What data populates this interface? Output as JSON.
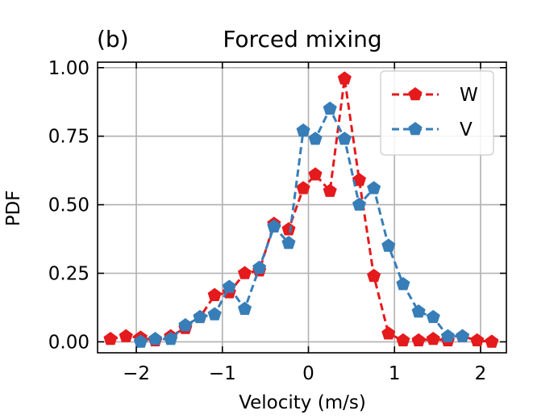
{
  "chart_data": {
    "type": "line",
    "panel_label": "(b)",
    "title": "Forced mixing",
    "xlabel": "Velocity (m/s)",
    "ylabel": "PDF",
    "xlim": [
      -2.45,
      2.3
    ],
    "ylim": [
      -0.04,
      1.02
    ],
    "xticks": [
      -2,
      -1,
      0,
      1,
      2
    ],
    "xtick_labels": [
      "−2",
      "−1",
      "0",
      "1",
      "2"
    ],
    "yticks": [
      0.0,
      0.25,
      0.5,
      0.75,
      1.0
    ],
    "ytick_labels": [
      "0.00",
      "0.25",
      "0.50",
      "0.75",
      "1.00"
    ],
    "grid": true,
    "legend_position": "top-right",
    "series": [
      {
        "name": "W",
        "color": "#e41a1c",
        "marker": "pentagon",
        "linestyle": "dashed",
        "x": [
          -2.3,
          -2.12,
          -1.95,
          -1.78,
          -1.6,
          -1.43,
          -1.26,
          -1.09,
          -0.92,
          -0.74,
          -0.57,
          -0.4,
          -0.23,
          -0.06,
          0.08,
          0.25,
          0.42,
          0.59,
          0.76,
          0.93,
          1.1,
          1.28,
          1.45,
          1.62,
          1.79,
          1.96,
          2.13
        ],
        "y": [
          0.01,
          0.02,
          0.015,
          0.005,
          0.02,
          0.05,
          0.09,
          0.17,
          0.18,
          0.25,
          0.26,
          0.43,
          0.41,
          0.56,
          0.61,
          0.55,
          0.96,
          0.59,
          0.24,
          0.03,
          0.005,
          0.005,
          0.01,
          0.005,
          0.02,
          0.005,
          0.0
        ]
      },
      {
        "name": "V",
        "color": "#377eb8",
        "marker": "pentagon",
        "linestyle": "dashed",
        "x": [
          -1.95,
          -1.78,
          -1.6,
          -1.43,
          -1.26,
          -1.09,
          -0.92,
          -0.74,
          -0.57,
          -0.4,
          -0.23,
          -0.06,
          0.08,
          0.25,
          0.42,
          0.59,
          0.76,
          0.93,
          1.1,
          1.28,
          1.45,
          1.62,
          1.79
        ],
        "y": [
          0.0,
          0.01,
          0.01,
          0.06,
          0.09,
          0.1,
          0.2,
          0.12,
          0.27,
          0.42,
          0.36,
          0.77,
          0.74,
          0.85,
          0.74,
          0.5,
          0.56,
          0.35,
          0.21,
          0.11,
          0.09,
          0.02,
          0.02
        ]
      }
    ]
  }
}
